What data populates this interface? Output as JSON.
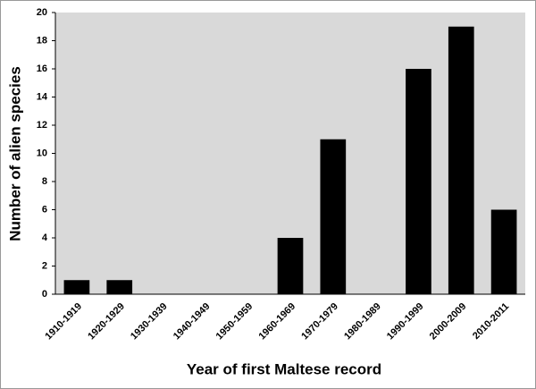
{
  "chart_data": {
    "type": "bar",
    "categories": [
      "1910-1919",
      "1920-1929",
      "1930-1939",
      "1940-1949",
      "1950-1959",
      "1960-1969",
      "1970-1979",
      "1980-1989",
      "1990-1999",
      "2000-2009",
      "2010-2011"
    ],
    "values": [
      1,
      1,
      0,
      0,
      0,
      4,
      11,
      0,
      16,
      19,
      6
    ],
    "color": "#000000",
    "x_label": "Year of first Maltese record",
    "y_label": "Number of alien species",
    "ylim": [
      0,
      20
    ],
    "yticks": [
      0,
      2,
      4,
      6,
      8,
      10,
      12,
      14,
      16,
      18,
      20
    ],
    "grid": false
  }
}
